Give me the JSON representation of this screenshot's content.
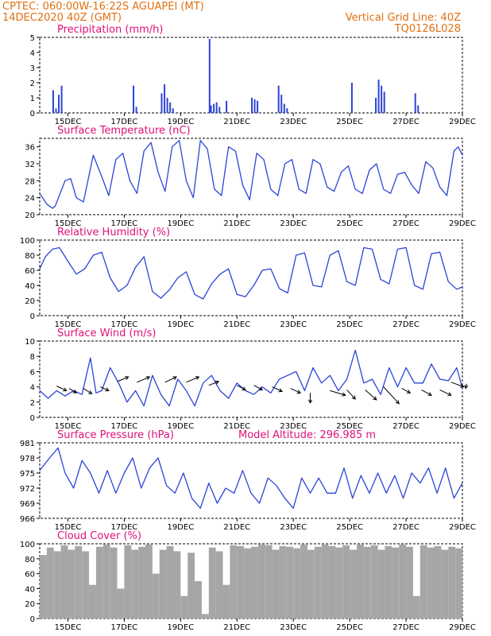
{
  "header": {
    "line1_left": "CPTEC:   060:00W-16:22S   AGUAPEI (MT)",
    "line2_left": "14DEC2020 40Z (GMT)",
    "line1_right": "Vertical Grid Line: 40Z",
    "line2_right": "TQ0126L028"
  },
  "colors": {
    "header": "#e07010",
    "panel_title": "#e0107a",
    "series": "#2b44d8",
    "cloud": "#a6a6a6",
    "wind_arrow": "#000000"
  },
  "x_axis": {
    "start": "14DEC2020 40Z",
    "end": "29DEC",
    "tick_labels": [
      "15DEC",
      "17DEC",
      "19DEC",
      "21DEC",
      "23DEC",
      "25DEC",
      "27DEC",
      "29DEC"
    ],
    "tick_days": [
      1,
      3,
      5,
      7,
      9,
      11,
      13,
      15
    ],
    "range_days": [
      0,
      15
    ]
  },
  "chart_data": [
    {
      "type": "bar",
      "title": "Precipitation (mm/h)",
      "ylim": [
        0,
        5
      ],
      "yticks": [
        0,
        1,
        2,
        3,
        4,
        5
      ],
      "x": [
        0.45,
        0.55,
        0.65,
        0.75,
        3.3,
        3.4,
        4.3,
        4.4,
        4.5,
        4.6,
        4.7,
        6.0,
        6.05,
        6.15,
        6.25,
        6.35,
        6.6,
        7.5,
        7.6,
        7.7,
        8.45,
        8.55,
        8.65,
        8.75,
        11.05,
        11.9,
        12.0,
        12.1,
        12.2,
        13.3,
        13.4
      ],
      "values": [
        1.5,
        0.3,
        1.2,
        1.8,
        1.8,
        0.4,
        1.3,
        1.9,
        1.0,
        0.7,
        0.3,
        4.9,
        0.5,
        0.6,
        0.7,
        0.4,
        0.8,
        1.0,
        0.9,
        0.8,
        1.8,
        1.2,
        0.6,
        0.3,
        2.0,
        1.0,
        2.2,
        1.8,
        1.4,
        1.3,
        0.5
      ]
    },
    {
      "type": "line",
      "title": "Surface Temperature (nC)",
      "ylim": [
        20,
        38
      ],
      "yticks": [
        20,
        24,
        28,
        32,
        36
      ],
      "x": [
        0,
        0.25,
        0.45,
        0.55,
        0.9,
        1.1,
        1.3,
        1.55,
        1.9,
        2.2,
        2.45,
        2.7,
        2.95,
        3.2,
        3.45,
        3.7,
        3.95,
        4.2,
        4.45,
        4.7,
        4.95,
        5.2,
        5.45,
        5.7,
        5.95,
        6.2,
        6.45,
        6.7,
        6.95,
        7.2,
        7.45,
        7.7,
        7.95,
        8.2,
        8.45,
        8.7,
        8.95,
        9.2,
        9.45,
        9.7,
        9.95,
        10.2,
        10.45,
        10.7,
        10.95,
        11.2,
        11.45,
        11.7,
        11.95,
        12.2,
        12.45,
        12.7,
        12.95,
        13.2,
        13.45,
        13.7,
        13.95,
        14.2,
        14.45,
        14.7,
        14.85,
        15
      ],
      "series": [
        {
          "values": [
            25,
            22.5,
            21.5,
            22,
            28,
            28.5,
            24,
            23,
            34,
            29,
            24.5,
            33,
            34.5,
            28,
            25,
            35,
            37,
            30,
            25.5,
            36,
            37.5,
            28,
            24,
            37.5,
            35.5,
            26,
            24.5,
            36,
            35,
            27,
            23.5,
            34.5,
            33,
            26,
            24.5,
            32,
            33,
            26,
            25,
            33,
            32,
            26.5,
            25.5,
            30,
            31.5,
            26,
            25,
            30.5,
            32,
            26,
            25,
            29.5,
            30,
            27,
            25,
            32.5,
            31,
            26.5,
            24.5,
            35,
            36,
            34
          ]
        }
      ]
    },
    {
      "type": "line",
      "title": "Relative Humidity (%)",
      "ylim": [
        0,
        100
      ],
      "yticks": [
        0,
        20,
        40,
        60,
        80,
        100
      ],
      "x": [
        0,
        0.2,
        0.45,
        0.7,
        1.0,
        1.3,
        1.6,
        1.9,
        2.2,
        2.5,
        2.8,
        3.1,
        3.4,
        3.7,
        4.0,
        4.3,
        4.6,
        4.9,
        5.2,
        5.5,
        5.8,
        6.1,
        6.4,
        6.7,
        7.0,
        7.3,
        7.6,
        7.9,
        8.2,
        8.5,
        8.8,
        9.1,
        9.4,
        9.7,
        10.0,
        10.3,
        10.6,
        10.9,
        11.2,
        11.5,
        11.8,
        12.1,
        12.4,
        12.7,
        13.0,
        13.3,
        13.6,
        13.9,
        14.2,
        14.5,
        14.8,
        15
      ],
      "series": [
        {
          "values": [
            62,
            78,
            88,
            90,
            72,
            55,
            62,
            80,
            84,
            50,
            32,
            40,
            64,
            78,
            32,
            23,
            34,
            50,
            58,
            28,
            22,
            42,
            55,
            62,
            28,
            25,
            40,
            60,
            62,
            36,
            30,
            80,
            83,
            40,
            38,
            80,
            86,
            45,
            40,
            90,
            88,
            48,
            42,
            88,
            90,
            40,
            35,
            82,
            84,
            45,
            35,
            38
          ]
        }
      ]
    },
    {
      "type": "line",
      "title": "Surface Wind (m/s)",
      "ylim": [
        0,
        10
      ],
      "yticks": [
        0,
        2,
        4,
        6,
        8,
        10
      ],
      "x": [
        0,
        0.3,
        0.6,
        0.9,
        1.2,
        1.5,
        1.8,
        2.0,
        2.2,
        2.5,
        2.8,
        3.1,
        3.4,
        3.7,
        4.0,
        4.3,
        4.6,
        4.9,
        5.2,
        5.5,
        5.8,
        6.1,
        6.4,
        6.7,
        7.0,
        7.3,
        7.6,
        7.9,
        8.2,
        8.5,
        8.8,
        9.1,
        9.4,
        9.7,
        10.0,
        10.3,
        10.6,
        10.9,
        11.2,
        11.5,
        11.8,
        12.1,
        12.4,
        12.7,
        13.0,
        13.3,
        13.6,
        13.9,
        14.2,
        14.5,
        14.8,
        15
      ],
      "series": [
        {
          "values": [
            3.5,
            2.5,
            3.5,
            2.8,
            3.5,
            3.0,
            7.8,
            3.2,
            3.5,
            6.5,
            4.5,
            2.0,
            3.5,
            1.5,
            5.5,
            3.0,
            1.5,
            5.0,
            3.5,
            1.5,
            4.5,
            5.5,
            3.5,
            2.5,
            4.5,
            3.5,
            3.0,
            4.0,
            3.2,
            5.0,
            5.5,
            6.0,
            3.5,
            6.5,
            4.5,
            5.5,
            3.5,
            5.0,
            8.8,
            4.5,
            5.0,
            3.0,
            6.5,
            4.0,
            6.5,
            4.5,
            4.5,
            7.0,
            5.0,
            4.8,
            6.5,
            3.8
          ]
        }
      ],
      "wind_arrows": [
        {
          "x": 0.6,
          "y": 4.1,
          "dx": 0.35,
          "dy": -0.6
        },
        {
          "x": 1.05,
          "y": 3.8,
          "dx": 0.25,
          "dy": -0.6
        },
        {
          "x": 1.55,
          "y": 3.8,
          "dx": 0.3,
          "dy": -0.7
        },
        {
          "x": 2.15,
          "y": 4.0,
          "dx": 0.3,
          "dy": -0.5
        },
        {
          "x": 2.75,
          "y": 4.7,
          "dx": 0.4,
          "dy": 0.6
        },
        {
          "x": 3.45,
          "y": 4.6,
          "dx": 0.45,
          "dy": 0.7
        },
        {
          "x": 4.45,
          "y": 4.6,
          "dx": 0.4,
          "dy": 0.7
        },
        {
          "x": 5.2,
          "y": 4.6,
          "dx": 0.45,
          "dy": 0.7
        },
        {
          "x": 6.0,
          "y": 4.2,
          "dx": 0.35,
          "dy": 0.5
        },
        {
          "x": 7.0,
          "y": 4.2,
          "dx": 0.3,
          "dy": -0.6
        },
        {
          "x": 7.6,
          "y": 4.2,
          "dx": 0.3,
          "dy": -0.6
        },
        {
          "x": 8.25,
          "y": 4.0,
          "dx": 0.35,
          "dy": -0.6
        },
        {
          "x": 8.9,
          "y": 3.8,
          "dx": 0.35,
          "dy": -0.6
        },
        {
          "x": 9.6,
          "y": 3.2,
          "dx": 0.0,
          "dy": -1.3
        },
        {
          "x": 10.3,
          "y": 3.5,
          "dx": 0.55,
          "dy": -0.6
        },
        {
          "x": 10.9,
          "y": 3.6,
          "dx": 0.3,
          "dy": -1.2
        },
        {
          "x": 11.55,
          "y": 3.6,
          "dx": 0.4,
          "dy": -1.3
        },
        {
          "x": 12.2,
          "y": 4.0,
          "dx": 0.55,
          "dy": -2.2
        },
        {
          "x": 12.85,
          "y": 3.8,
          "dx": 0.3,
          "dy": -0.6
        },
        {
          "x": 13.55,
          "y": 3.6,
          "dx": 0.35,
          "dy": -0.7
        },
        {
          "x": 14.2,
          "y": 3.6,
          "dx": 0.4,
          "dy": -0.7
        },
        {
          "x": 14.6,
          "y": 4.6,
          "dx": 0.45,
          "dy": -0.6
        },
        {
          "x": 15.15,
          "y": 4.4,
          "dx": 0.4,
          "dy": -0.6
        }
      ]
    },
    {
      "type": "line",
      "title": "Surface Pressure (hPa)",
      "annotation": "Model Altitude: 296.985 m",
      "ylim": [
        966,
        981
      ],
      "yticks": [
        966,
        969,
        972,
        975,
        978,
        981
      ],
      "x": [
        0,
        0.35,
        0.65,
        0.9,
        1.2,
        1.5,
        1.8,
        2.1,
        2.4,
        2.7,
        3.0,
        3.3,
        3.6,
        3.9,
        4.2,
        4.5,
        4.8,
        5.1,
        5.4,
        5.7,
        6.0,
        6.3,
        6.6,
        6.9,
        7.2,
        7.5,
        7.8,
        8.1,
        8.4,
        8.7,
        9.0,
        9.3,
        9.6,
        9.9,
        10.2,
        10.5,
        10.8,
        11.1,
        11.4,
        11.7,
        12.0,
        12.3,
        12.6,
        12.9,
        13.2,
        13.5,
        13.8,
        14.1,
        14.4,
        14.7,
        15
      ],
      "series": [
        {
          "values": [
            975.5,
            978,
            980,
            975,
            972,
            977.5,
            975,
            971,
            975.5,
            971,
            975,
            978,
            972,
            976,
            978,
            972.5,
            971,
            975,
            970,
            968,
            973,
            969,
            972,
            971,
            975.5,
            971,
            969,
            974,
            972.5,
            970,
            968,
            974,
            971,
            974,
            971,
            971,
            976,
            970,
            974.5,
            971,
            975,
            971,
            974.5,
            970,
            975,
            973,
            976,
            971,
            976,
            970,
            973
          ]
        }
      ]
    },
    {
      "type": "bar",
      "title": "Cloud Cover (%)",
      "ylim": [
        0,
        100
      ],
      "yticks": [
        0,
        20,
        40,
        60,
        80,
        100
      ],
      "x": [
        0,
        0.25,
        0.5,
        0.75,
        1.0,
        1.25,
        1.5,
        1.75,
        2.0,
        2.25,
        2.5,
        2.75,
        3.0,
        3.25,
        3.5,
        3.75,
        4.0,
        4.25,
        4.5,
        4.75,
        5.0,
        5.25,
        5.5,
        5.75,
        6.0,
        6.25,
        6.5,
        6.75,
        7.0,
        7.25,
        7.5,
        7.75,
        8.0,
        8.25,
        8.5,
        8.75,
        9.0,
        9.25,
        9.5,
        9.75,
        10.0,
        10.25,
        10.5,
        10.75,
        11.0,
        11.25,
        11.5,
        11.75,
        12.0,
        12.25,
        12.5,
        12.75,
        13.0,
        13.25,
        13.5,
        13.75,
        14.0,
        14.25,
        14.5,
        14.75
      ],
      "values": [
        85,
        95,
        90,
        98,
        92,
        97,
        90,
        45,
        96,
        99,
        95,
        40,
        98,
        92,
        96,
        99,
        60,
        92,
        97,
        90,
        30,
        88,
        50,
        6,
        95,
        90,
        45,
        98,
        97,
        94,
        96,
        99,
        98,
        92,
        97,
        96,
        94,
        99,
        92,
        96,
        99,
        97,
        95,
        98,
        92,
        99,
        96,
        98,
        92,
        97,
        95,
        99,
        96,
        30,
        98,
        95,
        97,
        92,
        96,
        94
      ]
    }
  ]
}
